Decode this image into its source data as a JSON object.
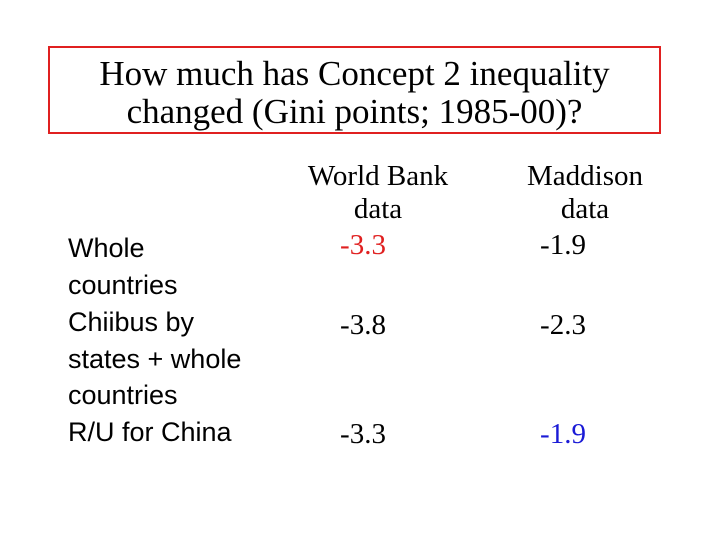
{
  "title": {
    "line1": "How much has Concept 2 inequality",
    "line2": "changed (Gini points; 1985-00)?"
  },
  "colors": {
    "title_border": "#e02020",
    "red_value": "#e02020",
    "blue_value": "#1a1ad6",
    "text": "#000000"
  },
  "table": {
    "headers": [
      {
        "line1": "World Bank",
        "line2": "data"
      },
      {
        "line1": "Maddison",
        "line2": "data"
      }
    ],
    "rows": [
      {
        "label_lines": [
          "Whole",
          "countries"
        ],
        "world_bank": "-3.3",
        "maddison": "-1.9"
      },
      {
        "label_lines": [
          "Chiibus by",
          "states + whole",
          "countries"
        ],
        "world_bank": "-3.8",
        "maddison": "-2.3"
      },
      {
        "label_lines": [
          "R/U for China"
        ],
        "world_bank": "-3.3",
        "maddison": "-1.9"
      }
    ]
  }
}
